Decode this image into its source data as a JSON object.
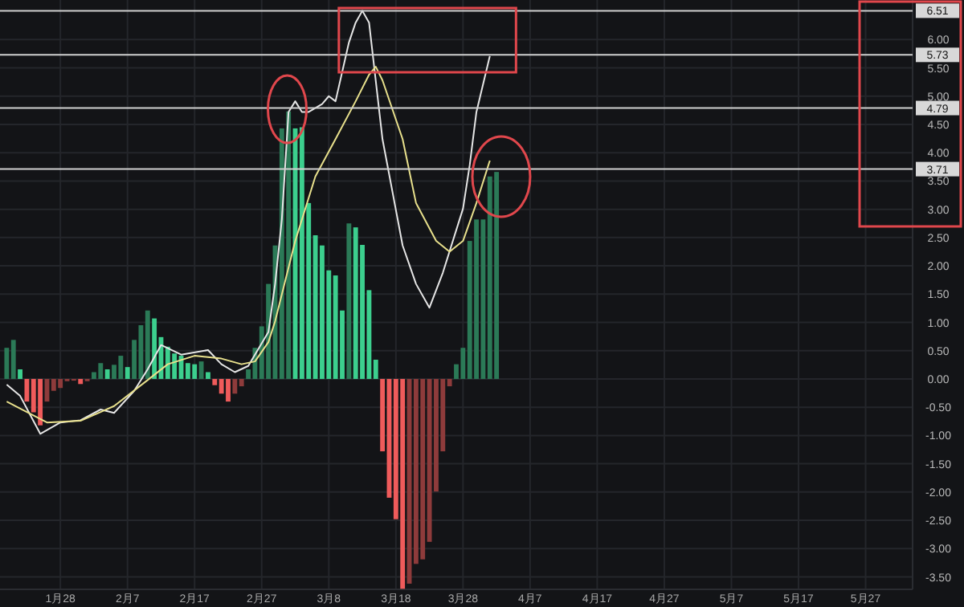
{
  "chart_data": {
    "type": "bar",
    "x": [
      "--01-20",
      "--01-21",
      "--01-22",
      "--01-23",
      "--01-24",
      "--01-25",
      "--01-26",
      "--01-27",
      "--01-28",
      "--01-29",
      "--01-30",
      "--01-31",
      "--02-01",
      "--02-02",
      "--02-03",
      "--02-04",
      "--02-05",
      "--02-06",
      "--02-07",
      "--02-08",
      "--02-09",
      "--02-10",
      "--02-11",
      "--02-12",
      "--02-13",
      "--02-14",
      "--02-15",
      "--02-16",
      "--02-17",
      "--02-18",
      "--02-19",
      "--02-20",
      "--02-21",
      "--02-22",
      "--02-23",
      "--02-24",
      "--02-25",
      "--02-26",
      "--02-27",
      "--02-28",
      "--02-29",
      "--03-01",
      "--03-02",
      "--03-03",
      "--03-04",
      "--03-05",
      "--03-06",
      "--03-07",
      "--03-08",
      "--03-09",
      "--03-10",
      "--03-11",
      "--03-12",
      "--03-13",
      "--03-14",
      "--03-15",
      "--03-16",
      "--03-17",
      "--03-18",
      "--03-19",
      "--03-20",
      "--03-21",
      "--03-22",
      "--03-23",
      "--03-24",
      "--03-25",
      "--03-26",
      "--03-27",
      "--03-28",
      "--03-29",
      "--03-30",
      "--03-31",
      "--04-01",
      "--04-02"
    ],
    "series": [
      {
        "values": [
          0.55,
          0.69,
          0.17,
          -0.4,
          -0.59,
          -0.82,
          -0.4,
          -0.21,
          -0.16,
          -0.04,
          -0.03,
          -0.09,
          -0.04,
          0.12,
          0.28,
          0.17,
          0.25,
          0.41,
          0.21,
          0.69,
          0.95,
          1.21,
          1.07,
          0.74,
          0.57,
          0.45,
          0.41,
          0.28,
          0.26,
          0.31,
          0.12,
          -0.11,
          -0.26,
          -0.4,
          -0.26,
          -0.13,
          0.17,
          0.55,
          0.93,
          1.68,
          2.36,
          4.43,
          4.73,
          4.43,
          4.45,
          3.11,
          2.54,
          2.36,
          1.92,
          1.83,
          1.21,
          2.75,
          2.68,
          2.37,
          1.57,
          0.34,
          -1.28,
          -2.1,
          -2.48,
          -3.71,
          -3.62,
          -3.27,
          -3.19,
          -2.88,
          -1.99,
          -1.28,
          -0.13,
          0.26,
          0.55,
          2.44,
          2.82,
          2.82,
          3.58,
          3.66
        ],
        "colors": [
          "#2b7a57",
          "#2b7a57",
          "#3ccf8e",
          "#ef5b5b",
          "#ef5b5b",
          "#ef5b5b",
          "#8e3b3b",
          "#8e3b3b",
          "#8e3b3b",
          "#8e3b3b",
          "#8e3b3b",
          "#ef5b5b",
          "#8e3b3b",
          "#2b7a57",
          "#2b7a57",
          "#3ccf8e",
          "#2b7a57",
          "#2b7a57",
          "#3ccf8e",
          "#2b7a57",
          "#2b7a57",
          "#2b7a57",
          "#3ccf8e",
          "#3ccf8e",
          "#3ccf8e",
          "#3ccf8e",
          "#3ccf8e",
          "#3ccf8e",
          "#3ccf8e",
          "#2b7a57",
          "#3ccf8e",
          "#ef5b5b",
          "#ef5b5b",
          "#ef5b5b",
          "#8e3b3b",
          "#8e3b3b",
          "#2b7a57",
          "#2b7a57",
          "#2b7a57",
          "#2b7a57",
          "#2b7a57",
          "#2b7a57",
          "#2b7a57",
          "#3ccf8e",
          "#3ccf8e",
          "#3ccf8e",
          "#3ccf8e",
          "#3ccf8e",
          "#3ccf8e",
          "#3ccf8e",
          "#3ccf8e",
          "#2b7a57",
          "#3ccf8e",
          "#3ccf8e",
          "#3ccf8e",
          "#3ccf8e",
          "#ef5b5b",
          "#ef5b5b",
          "#ef5b5b",
          "#ef5b5b",
          "#8e3b3b",
          "#8e3b3b",
          "#8e3b3b",
          "#8e3b3b",
          "#8e3b3b",
          "#8e3b3b",
          "#8e3b3b",
          "#2b7a57",
          "#2b7a57",
          "#2b7a57",
          "#2b7a57",
          "#2b7a57",
          "#2b7a57",
          "#2b7a57"
        ]
      },
      {
        "type": "line",
        "color": "#e6e6e6",
        "x": [
          "--01-20",
          "--01-22",
          "--01-25",
          "--01-28",
          "--01-31",
          "--02-03",
          "--02-05",
          "--02-08",
          "--02-10",
          "--02-12",
          "--02-15",
          "--02-19",
          "--02-21",
          "--02-23",
          "--02-25",
          "--02-28",
          "--02-29",
          "--03-01",
          "--03-02",
          "--03-03",
          "--03-04",
          "--03-05",
          "--03-07",
          "--03-08",
          "--03-09",
          "--03-11",
          "--03-12",
          "--03-13",
          "--03-14",
          "--03-16",
          "--03-19",
          "--03-21",
          "--03-23",
          "--03-25",
          "--03-28",
          "--03-29",
          "--03-30",
          "--04-01"
        ],
        "values": [
          -0.1,
          -0.3,
          -0.97,
          -0.77,
          -0.73,
          -0.54,
          -0.6,
          -0.21,
          0.17,
          0.6,
          0.43,
          0.51,
          0.26,
          0.12,
          0.23,
          0.83,
          1.68,
          2.82,
          4.72,
          4.91,
          4.72,
          4.72,
          4.86,
          5.0,
          4.91,
          5.95,
          6.3,
          6.51,
          6.3,
          4.24,
          2.36,
          1.68,
          1.26,
          1.88,
          3.01,
          3.78,
          4.72,
          5.71
        ]
      },
      {
        "type": "line",
        "color": "#e8e08c",
        "x": [
          "--01-20",
          "--01-26",
          "--01-31",
          "--02-05",
          "--02-10",
          "--02-13",
          "--02-17",
          "--02-21",
          "--02-24",
          "--02-26",
          "--02-28",
          "--02-29",
          "--03-03",
          "--03-06",
          "--03-09",
          "--03-12",
          "--03-14",
          "--03-15",
          "--03-16",
          "--03-19",
          "--03-21",
          "--03-24",
          "--03-26",
          "--03-28",
          "--03-30",
          "--04-01"
        ],
        "values": [
          -0.4,
          -0.77,
          -0.74,
          -0.48,
          -0.02,
          0.26,
          0.41,
          0.36,
          0.26,
          0.31,
          0.65,
          1.02,
          2.44,
          3.58,
          4.24,
          4.91,
          5.38,
          5.52,
          5.28,
          4.24,
          3.11,
          2.44,
          2.25,
          2.44,
          3.11,
          3.86
        ]
      }
    ],
    "xlim": [
      "--01-19",
      "--06-03"
    ],
    "xticks": [
      {
        "value": "--01-28",
        "label": "1月28"
      },
      {
        "value": "--02-07",
        "label": "2月7"
      },
      {
        "value": "--02-17",
        "label": "2月17"
      },
      {
        "value": "--02-27",
        "label": "2月27"
      },
      {
        "value": "--03-08",
        "label": "3月8"
      },
      {
        "value": "--03-18",
        "label": "3月18"
      },
      {
        "value": "--03-28",
        "label": "3月28"
      },
      {
        "value": "--04-07",
        "label": "4月7"
      },
      {
        "value": "--04-17",
        "label": "4月17"
      },
      {
        "value": "--04-27",
        "label": "4月27"
      },
      {
        "value": "--05-07",
        "label": "5月7"
      },
      {
        "value": "--05-17",
        "label": "5月17"
      },
      {
        "value": "--05-27",
        "label": "5月27"
      }
    ],
    "ylim": [
      -3.72,
      6.7
    ],
    "yticks": [
      {
        "value": -3.5,
        "label": "-3.50"
      },
      {
        "value": -3,
        "label": "-3.00"
      },
      {
        "value": -2.5,
        "label": "-2.50"
      },
      {
        "value": -2,
        "label": "-2.00"
      },
      {
        "value": -1.5,
        "label": "-1.50"
      },
      {
        "value": -1,
        "label": "-1.00"
      },
      {
        "value": -0.5,
        "label": "-0.50"
      },
      {
        "value": 0,
        "label": "0.00"
      },
      {
        "value": 0.5,
        "label": "0.50"
      },
      {
        "value": 1,
        "label": "1.00"
      },
      {
        "value": 1.5,
        "label": "1.50"
      },
      {
        "value": 2,
        "label": "2.00"
      },
      {
        "value": 2.5,
        "label": "2.50"
      },
      {
        "value": 3,
        "label": "3.00"
      },
      {
        "value": 3.5,
        "label": "3.50"
      },
      {
        "value": 4,
        "label": "4.00"
      },
      {
        "value": 4.5,
        "label": "4.50"
      },
      {
        "value": 5,
        "label": "5.00"
      },
      {
        "value": 5.5,
        "label": "5.50"
      },
      {
        "value": 6,
        "label": "6.00"
      }
    ],
    "ref_lines": [
      {
        "axis": "y",
        "value": 6.51,
        "label": "6.51",
        "color": "#d0d0d0"
      },
      {
        "axis": "y",
        "value": 5.73,
        "label": "5.73",
        "color": "#d0d0d0"
      },
      {
        "axis": "y",
        "value": 4.79,
        "label": "4.79",
        "color": "#d0d0d0"
      },
      {
        "axis": "y",
        "value": 3.71,
        "label": "3.71",
        "color": "#d0d0d0"
      }
    ],
    "grid": true
  }
}
